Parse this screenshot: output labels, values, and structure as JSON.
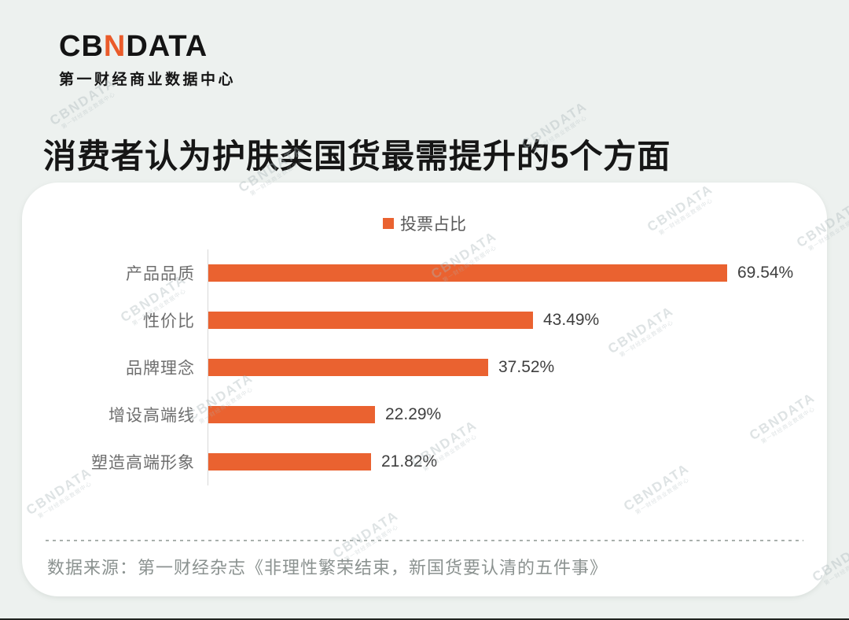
{
  "logo": {
    "prefix": "CB",
    "accent": "N",
    "suffix": "DATA",
    "subtitle": "第一财经商业数据中心"
  },
  "title": "消费者认为护肤类国货最需提升的5个方面",
  "legend": {
    "label": "投票占比"
  },
  "chart_data": {
    "type": "bar",
    "orientation": "horizontal",
    "title": "消费者认为护肤类国货最需提升的5个方面",
    "series_name": "投票占比",
    "categories": [
      "产品品质",
      "性价比",
      "品牌理念",
      "增设高端线",
      "塑造高端形象"
    ],
    "values": [
      69.54,
      43.49,
      37.52,
      22.29,
      21.82
    ],
    "value_labels": [
      "69.54%",
      "43.49%",
      "37.52%",
      "22.29%",
      "21.82%"
    ],
    "unit": "%",
    "xlim": [
      0,
      75
    ],
    "grid": false,
    "legend_position": "top-center",
    "bar_color": "#ea6230"
  },
  "source": "数据来源：第一财经杂志《非理性繁荣结束，新国货要认清的五件事》",
  "watermark": {
    "text": "CBNDATA",
    "subtext": "第一财经商业数据中心"
  },
  "colors": {
    "accent_orange": "#ea6230",
    "background": "#edf1ef",
    "card": "#ffffff",
    "axis_line": "#d9d9d9"
  }
}
